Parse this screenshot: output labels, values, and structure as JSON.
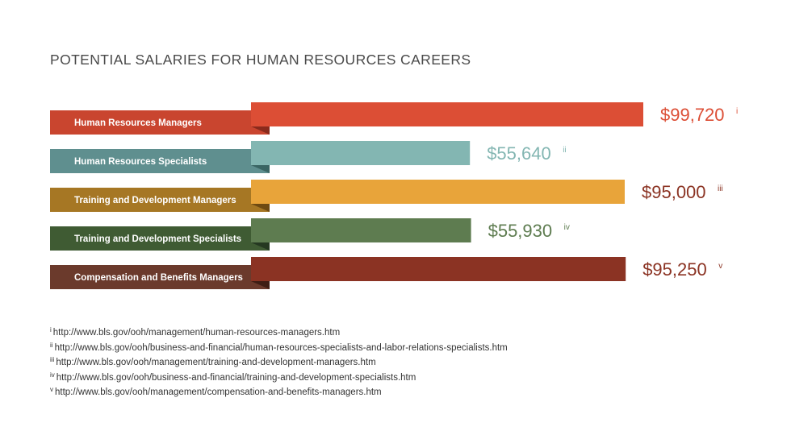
{
  "title": "POTENTIAL SALARIES FOR HUMAN RESOURCES CAREERS",
  "chart_data": {
    "type": "bar",
    "orientation": "horizontal",
    "title": "POTENTIAL SALARIES FOR HUMAN RESOURCES CAREERS",
    "categories": [
      "Human Resources Managers",
      "Human Resources Specialists",
      "Training and Development Managers",
      "Training and Development Specialists",
      "Compensation and Benefits Managers"
    ],
    "values": [
      99720,
      55640,
      95000,
      55930,
      95250
    ],
    "value_labels": [
      "$99,720",
      "$55,640",
      "$95,000",
      "$55,930",
      "$95,250"
    ],
    "footnote_marks": [
      "i",
      "ii",
      "iii",
      "iv",
      "v"
    ],
    "colors": {
      "label_bg": [
        "#c9452f",
        "#5f8f8f",
        "#a67724",
        "#3f5b33",
        "#6b3a2c"
      ],
      "bar": [
        "#dc4e35",
        "#83b6b2",
        "#e8a43a",
        "#5e7c50",
        "#8b3323"
      ],
      "value_text": [
        "#dc4e35",
        "#83b6b2",
        "#8b3323",
        "#5e7c50",
        "#8b3323"
      ],
      "fold": [
        "#8a2a1c",
        "#3a6563",
        "#6e4a12",
        "#253821",
        "#3e1d14"
      ]
    },
    "legend": "none",
    "grid": false
  },
  "references": [
    {
      "mark": "i",
      "url": "http://www.bls.gov/ooh/management/human-resources-managers.htm"
    },
    {
      "mark": "ii",
      "url": "http://www.bls.gov/ooh/business-and-financial/human-resources-specialists-and-labor-relations-specialists.htm"
    },
    {
      "mark": "iii",
      "url": "http://www.bls.gov/ooh/management/training-and-development-managers.htm"
    },
    {
      "mark": "iv",
      "url": "http://www.bls.gov/ooh/business-and-financial/training-and-development-specialists.htm"
    },
    {
      "mark": "v",
      "url": "http://www.bls.gov/ooh/management/compensation-and-benefits-managers.htm"
    }
  ]
}
